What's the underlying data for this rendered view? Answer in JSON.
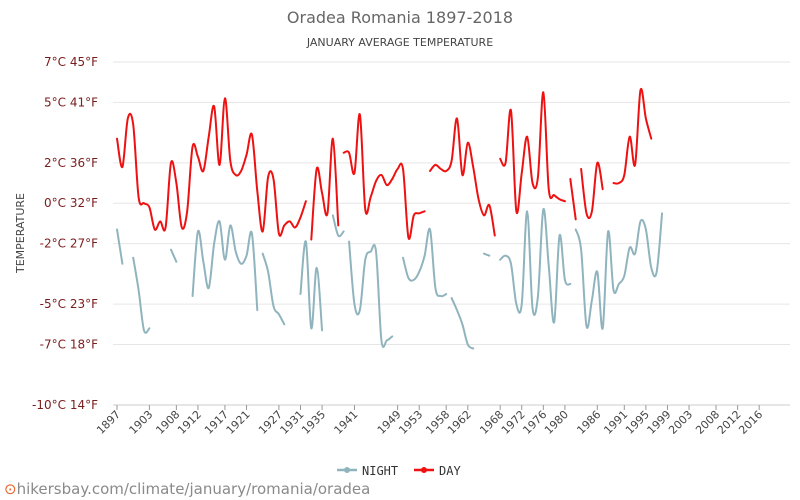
{
  "chart_data": {
    "type": "line",
    "title": "Oradea Romania 1897-2018",
    "subtitle": "JANUARY AVERAGE TEMPERATURE",
    "ylabel": "TEMPERATURE",
    "xlabel": "",
    "ylim": [
      -10,
      7
    ],
    "xlim": [
      1897,
      2018
    ],
    "grid": true,
    "legend_position": "bottom",
    "y_ticks": [
      {
        "value": 7,
        "label": "7°C 45°F"
      },
      {
        "value": 5,
        "label": "5°C 41°F"
      },
      {
        "value": 2,
        "label": "2°C 36°F"
      },
      {
        "value": 0,
        "label": "0°C 32°F"
      },
      {
        "value": -2,
        "label": "-2°C 27°F"
      },
      {
        "value": -5,
        "label": "-5°C 23°F"
      },
      {
        "value": -7,
        "label": "-7°C 18°F"
      },
      {
        "value": -10,
        "label": "-10°C 14°F"
      }
    ],
    "x_ticks": [
      1897,
      1903,
      1908,
      1912,
      1917,
      1921,
      1927,
      1931,
      1935,
      1941,
      1949,
      1953,
      1958,
      1962,
      1968,
      1972,
      1976,
      1980,
      1986,
      1991,
      1995,
      1999,
      2003,
      2008,
      2012,
      2016
    ],
    "series": [
      {
        "name": "NIGHT",
        "color": "#90b4be",
        "segments": [
          [
            [
              1897,
              -1.3
            ],
            [
              1898,
              -3.0
            ],
            [
              1899,
              null
            ]
          ],
          [
            [
              1900,
              -2.7
            ],
            [
              1901,
              -4.3
            ],
            [
              1902,
              -6.3
            ],
            [
              1903,
              -6.2
            ]
          ],
          [
            [
              1907,
              -2.3
            ],
            [
              1908,
              -2.9
            ]
          ],
          [
            [
              1911,
              -4.6
            ],
            [
              1912,
              -1.4
            ],
            [
              1913,
              -2.9
            ],
            [
              1914,
              -4.2
            ],
            [
              1915,
              -2.0
            ],
            [
              1916,
              -0.9
            ],
            [
              1917,
              -2.8
            ],
            [
              1918,
              -1.1
            ],
            [
              1919,
              -2.4
            ],
            [
              1920,
              -3.0
            ],
            [
              1921,
              -2.6
            ],
            [
              1922,
              -1.5
            ],
            [
              1923,
              -5.3
            ]
          ],
          [
            [
              1924,
              -2.5
            ],
            [
              1925,
              -3.4
            ],
            [
              1926,
              -5.1
            ],
            [
              1927,
              -5.5
            ],
            [
              1928,
              -6.0
            ]
          ],
          [
            [
              1931,
              -4.5
            ],
            [
              1932,
              -1.9
            ],
            [
              1933,
              -6.2
            ],
            [
              1934,
              -3.2
            ],
            [
              1935,
              -6.3
            ]
          ],
          [
            [
              1937,
              -0.6
            ],
            [
              1938,
              -1.6
            ],
            [
              1939,
              -1.4
            ]
          ],
          [
            [
              1940,
              -1.9
            ],
            [
              1941,
              -5.0
            ],
            [
              1942,
              -5.3
            ],
            [
              1943,
              -2.8
            ],
            [
              1944,
              -2.4
            ],
            [
              1945,
              -2.4
            ],
            [
              1946,
              -6.8
            ],
            [
              1947,
              -6.8
            ],
            [
              1948,
              -6.6
            ]
          ],
          [
            [
              1950,
              -2.7
            ],
            [
              1951,
              -3.7
            ],
            [
              1952,
              -3.8
            ],
            [
              1953,
              -3.4
            ],
            [
              1954,
              -2.6
            ],
            [
              1955,
              -1.3
            ],
            [
              1956,
              -4.2
            ],
            [
              1957,
              -4.6
            ],
            [
              1958,
              -4.5
            ]
          ],
          [
            [
              1959,
              -4.7
            ],
            [
              1960,
              -5.3
            ],
            [
              1961,
              -6.0
            ],
            [
              1962,
              -7.0
            ],
            [
              1963,
              -7.2
            ]
          ],
          [
            [
              1965,
              -2.5
            ],
            [
              1966,
              -2.6
            ]
          ],
          [
            [
              1968,
              -2.8
            ],
            [
              1969,
              -2.6
            ],
            [
              1970,
              -3.0
            ],
            [
              1971,
              -5.0
            ],
            [
              1972,
              -5.0
            ],
            [
              1973,
              -0.4
            ],
            [
              1974,
              -5.2
            ],
            [
              1975,
              -4.6
            ],
            [
              1976,
              -0.3
            ],
            [
              1977,
              -3.1
            ],
            [
              1978,
              -5.9
            ],
            [
              1979,
              -1.6
            ],
            [
              1980,
              -3.8
            ],
            [
              1981,
              -4.0
            ]
          ],
          [
            [
              1982,
              -1.3
            ],
            [
              1983,
              -2.3
            ],
            [
              1984,
              -6.1
            ],
            [
              1985,
              -4.8
            ],
            [
              1986,
              -3.4
            ],
            [
              1987,
              -6.2
            ],
            [
              1988,
              -1.4
            ],
            [
              1989,
              -4.3
            ],
            [
              1990,
              -4.0
            ],
            [
              1991,
              -3.6
            ],
            [
              1992,
              -2.2
            ],
            [
              1993,
              -2.5
            ],
            [
              1994,
              -0.9
            ],
            [
              1995,
              -1.3
            ],
            [
              1996,
              -3.2
            ],
            [
              1997,
              -3.4
            ],
            [
              1998,
              -0.5
            ]
          ]
        ]
      },
      {
        "name": "DAY",
        "color": "#ee1111",
        "segments": [
          [
            [
              1897,
              3.2
            ],
            [
              1898,
              1.8
            ],
            [
              1899,
              4.2
            ],
            [
              1900,
              3.9
            ],
            [
              1901,
              0.3
            ],
            [
              1902,
              0.0
            ],
            [
              1903,
              -0.2
            ],
            [
              1904,
              -1.3
            ],
            [
              1905,
              -0.9
            ],
            [
              1906,
              -1.2
            ],
            [
              1907,
              2.0
            ],
            [
              1908,
              1.0
            ],
            [
              1909,
              -1.2
            ],
            [
              1910,
              -0.4
            ],
            [
              1911,
              2.8
            ],
            [
              1912,
              2.3
            ],
            [
              1913,
              1.6
            ],
            [
              1914,
              3.3
            ],
            [
              1915,
              4.8
            ],
            [
              1916,
              1.9
            ],
            [
              1917,
              5.2
            ],
            [
              1918,
              2.1
            ],
            [
              1919,
              1.4
            ],
            [
              1920,
              1.6
            ],
            [
              1921,
              2.4
            ],
            [
              1922,
              3.4
            ],
            [
              1923,
              0.6
            ],
            [
              1924,
              -1.4
            ],
            [
              1925,
              1.3
            ],
            [
              1926,
              1.2
            ],
            [
              1927,
              -1.5
            ],
            [
              1928,
              -1.1
            ],
            [
              1929,
              -0.9
            ],
            [
              1930,
              -1.2
            ],
            [
              1931,
              -0.7
            ],
            [
              1932,
              0.1
            ]
          ],
          [
            [
              1933,
              -1.8
            ],
            [
              1934,
              1.7
            ],
            [
              1935,
              0.5
            ],
            [
              1936,
              -0.5
            ],
            [
              1937,
              3.2
            ],
            [
              1938,
              -1.1
            ]
          ],
          [
            [
              1939,
              2.5
            ],
            [
              1940,
              2.5
            ],
            [
              1941,
              1.5
            ],
            [
              1942,
              4.4
            ],
            [
              1943,
              -0.3
            ],
            [
              1944,
              0.3
            ],
            [
              1945,
              1.1
            ],
            [
              1946,
              1.4
            ],
            [
              1947,
              0.9
            ],
            [
              1948,
              1.2
            ],
            [
              1949,
              1.7
            ],
            [
              1950,
              1.7
            ],
            [
              1951,
              -1.7
            ],
            [
              1952,
              -0.6
            ],
            [
              1953,
              -0.5
            ],
            [
              1954,
              -0.4
            ]
          ],
          [
            [
              1955,
              1.6
            ],
            [
              1956,
              1.9
            ],
            [
              1957,
              1.7
            ],
            [
              1958,
              1.6
            ],
            [
              1959,
              2.1
            ],
            [
              1960,
              4.2
            ],
            [
              1961,
              1.4
            ],
            [
              1962,
              3.0
            ],
            [
              1963,
              1.8
            ],
            [
              1964,
              0.2
            ],
            [
              1965,
              -0.6
            ],
            [
              1966,
              -0.1
            ],
            [
              1967,
              -1.6
            ]
          ],
          [
            [
              1968,
              2.2
            ],
            [
              1969,
              2.0
            ],
            [
              1970,
              4.6
            ],
            [
              1971,
              -0.4
            ],
            [
              1972,
              1.5
            ],
            [
              1973,
              3.3
            ],
            [
              1974,
              1.0
            ],
            [
              1975,
              1.3
            ],
            [
              1976,
              5.5
            ],
            [
              1977,
              0.7
            ],
            [
              1978,
              0.4
            ],
            [
              1979,
              0.2
            ],
            [
              1980,
              0.1
            ]
          ],
          [
            [
              1981,
              1.2
            ],
            [
              1982,
              -0.8
            ]
          ],
          [
            [
              1983,
              1.7
            ],
            [
              1984,
              -0.5
            ],
            [
              1985,
              -0.4
            ],
            [
              1986,
              2.0
            ],
            [
              1987,
              0.7
            ]
          ],
          [
            [
              1989,
              1.0
            ],
            [
              1990,
              1.0
            ],
            [
              1991,
              1.4
            ],
            [
              1992,
              3.3
            ],
            [
              1993,
              1.9
            ],
            [
              1994,
              5.6
            ],
            [
              1995,
              4.2
            ],
            [
              1996,
              3.2
            ]
          ]
        ]
      }
    ]
  },
  "legend": {
    "night_label": "NIGHT",
    "day_label": "DAY"
  },
  "watermark": {
    "text": "hikersbay.com/climate/january/romania/oradea"
  }
}
